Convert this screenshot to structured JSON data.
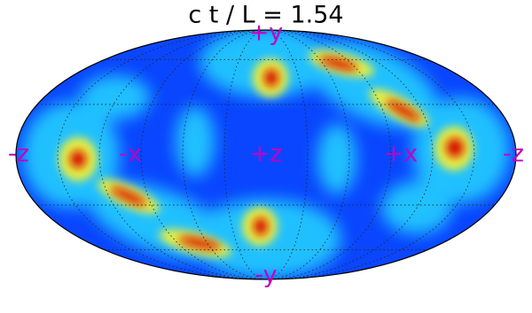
{
  "title": "c t / L = 1.54",
  "labels": {
    "top": "+y",
    "bottom": "-y",
    "left": "-z",
    "left_inner": "-x",
    "center": "+z",
    "right_inner": "+x",
    "right": "-z"
  }
}
